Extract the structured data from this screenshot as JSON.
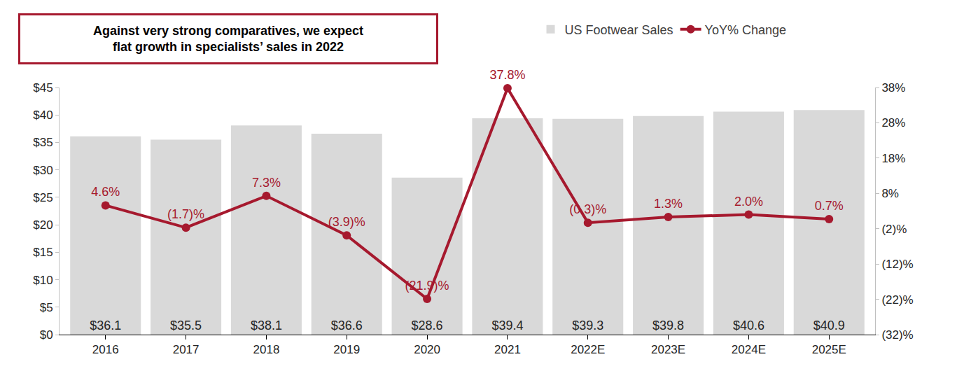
{
  "chart_data": {
    "type": "bar",
    "title": "Against very strong comparatives, we expect flat growth in specialists’ sales in 2022",
    "categories": [
      "2016",
      "2017",
      "2018",
      "2019",
      "2020",
      "2021",
      "2022E",
      "2023E",
      "2024E",
      "2025E"
    ],
    "series": [
      {
        "name": "US Footwear Sales",
        "type": "bar",
        "color": "#d9d9d9",
        "values": [
          36.1,
          35.5,
          38.1,
          36.6,
          28.6,
          39.4,
          39.3,
          39.8,
          40.6,
          40.9
        ],
        "value_labels": [
          "$36.1",
          "$35.5",
          "$38.1",
          "$36.6",
          "$28.6",
          "$39.4",
          "$39.3",
          "$39.8",
          "$40.6",
          "$40.9"
        ]
      },
      {
        "name": "YoY% Change",
        "type": "line",
        "axis": "y2",
        "color": "#a6192e",
        "marker": "circle",
        "values": [
          4.6,
          -1.7,
          7.3,
          -3.9,
          -21.9,
          37.8,
          -0.3,
          1.3,
          2.0,
          0.7
        ],
        "value_labels": [
          "4.6%",
          "(1.7)%",
          "7.3%",
          "(3.9)%",
          "(21.9)%",
          "37.8%",
          "(0.3)%",
          "1.3%",
          "2.0%",
          "0.7%"
        ]
      }
    ],
    "ylim": [
      0,
      45
    ],
    "yticks": [
      {
        "value": 0,
        "label": "$0"
      },
      {
        "value": 5,
        "label": "$5"
      },
      {
        "value": 10,
        "label": "$10"
      },
      {
        "value": 15,
        "label": "$15"
      },
      {
        "value": 20,
        "label": "$20"
      },
      {
        "value": 25,
        "label": "$25"
      },
      {
        "value": 30,
        "label": "$30"
      },
      {
        "value": 35,
        "label": "$35"
      },
      {
        "value": 40,
        "label": "$40"
      },
      {
        "value": 45,
        "label": "$45"
      }
    ],
    "y2lim": [
      -32,
      38
    ],
    "y2ticks": [
      {
        "value": -32,
        "label": "(32)%"
      },
      {
        "value": -22,
        "label": "(22)%"
      },
      {
        "value": -12,
        "label": "(12)%"
      },
      {
        "value": -2,
        "label": "(2)%"
      },
      {
        "value": 8,
        "label": "8%"
      },
      {
        "value": 18,
        "label": "18%"
      },
      {
        "value": 28,
        "label": "28%"
      },
      {
        "value": 38,
        "label": "38%"
      }
    ],
    "data_labels": true,
    "legend": "top right",
    "grid": false
  }
}
